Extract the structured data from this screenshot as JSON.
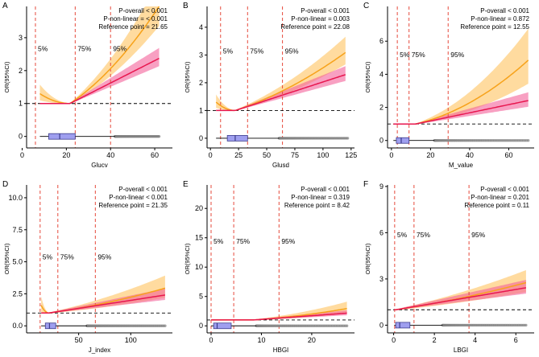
{
  "figure": {
    "colors": {
      "linear_line": "#e8174f",
      "linear_band": "#f4609a",
      "spline_line": "#f7a21a",
      "spline_band": "#ffcf7f",
      "overlap_band": "#f25a5a",
      "ref_line": "#000000",
      "pct_line": "#e64a3c",
      "box_fill": "#9f9fef",
      "box_stroke": "#3c3c8c",
      "outlier": "#808080",
      "axis": "#000000",
      "text": "#000000"
    }
  },
  "chart_data": [
    {
      "type": "line",
      "panel_label": "A",
      "xlabel": "Glucv",
      "ylabel": "OR(95%CI)",
      "xlim": [
        2,
        68
      ],
      "ylim": [
        -0.35,
        3.95
      ],
      "xticks": [
        0,
        20,
        40,
        60
      ],
      "xtick_labels": [
        "0",
        "20",
        "40",
        "60"
      ],
      "yticks": [
        0,
        1,
        2,
        3
      ],
      "ytick_labels": [
        "0",
        "1",
        "2",
        "3"
      ],
      "ref_y": 1,
      "percentiles": [
        {
          "label": "5%",
          "x": 6
        },
        {
          "label": "75%",
          "x": 24
        },
        {
          "label": "95%",
          "x": 40
        }
      ],
      "pct_label_y": 2.6,
      "stats": [
        "P-overall < 0.001",
        "P-non-linear = < 0.001",
        "Reference point = 21.65"
      ],
      "ref_point": 21.65,
      "x_end": 62,
      "linear_slope": 0.034,
      "spline_slope": 0.045,
      "spline_curve": 0.0007,
      "left_bump": 0.3,
      "band_lin": 0.1,
      "band_spl": 0.12,
      "box": {
        "min": 8,
        "q1": 12,
        "median": 17,
        "q3": 24,
        "max": 42,
        "outliers_from": 42,
        "outliers_to": 62,
        "y": 0
      }
    },
    {
      "type": "line",
      "panel_label": "B",
      "xlabel": "Glusd",
      "ylabel": "OR(95%CI)",
      "xlim": [
        -3,
        128
      ],
      "ylim": [
        -0.35,
        4.75
      ],
      "xticks": [
        0,
        25,
        50,
        75,
        100,
        125
      ],
      "xtick_labels": [
        "0",
        "25",
        "50",
        "75",
        "100",
        "125"
      ],
      "yticks": [
        0,
        1,
        2,
        3,
        4
      ],
      "ytick_labels": [
        "0",
        "1",
        "2",
        "3",
        "4"
      ],
      "ref_y": 1,
      "percentiles": [
        {
          "label": "5%",
          "x": 9
        },
        {
          "label": "75%",
          "x": 33
        },
        {
          "label": "95%",
          "x": 64
        }
      ],
      "pct_label_y": 3.05,
      "stats": [
        "P-overall < 0.001",
        "P-non-linear = 0.003",
        "Reference point = 22.08"
      ],
      "ref_point": 22.08,
      "x_end": 120,
      "linear_slope": 0.0132,
      "spline_slope": 0.0135,
      "spline_curve": 8e-05,
      "left_bump": 0.3,
      "band_lin": 0.1,
      "band_spl": 0.12,
      "box": {
        "min": 5,
        "q1": 15,
        "median": 22,
        "q3": 33,
        "max": 61,
        "outliers_from": 61,
        "outliers_to": 122,
        "y": 0
      }
    },
    {
      "type": "line",
      "panel_label": "C",
      "xlabel": "M_value",
      "ylabel": "OR(95%CI)",
      "xlim": [
        -2,
        73
      ],
      "ylim": [
        -0.45,
        8.1
      ],
      "xticks": [
        0,
        20,
        40,
        60
      ],
      "xtick_labels": [
        "0",
        "20",
        "40",
        "60"
      ],
      "yticks": [
        0,
        2,
        4,
        6
      ],
      "ytick_labels": [
        "0",
        "2",
        "4",
        "6"
      ],
      "ref_y": 1,
      "percentiles": [
        {
          "label": "5%",
          "x": 3
        },
        {
          "label": "75%",
          "x": 9
        },
        {
          "label": "95%",
          "x": 29
        }
      ],
      "pct_label_y": 5.05,
      "stats": [
        "P-overall < 0.001",
        "P-non-linear = 0.872",
        "Reference point = 12.55"
      ],
      "ref_point": 12.55,
      "x_end": 70,
      "linear_slope": 0.0246,
      "spline_slope": 0.028,
      "spline_curve": 0.00068,
      "left_bump": 0,
      "band_lin": 0.15,
      "band_spl": 0.22,
      "box": {
        "min": 1,
        "q1": 2.5,
        "median": 5,
        "q3": 9,
        "max": 22,
        "outliers_from": 22,
        "outliers_to": 70,
        "y": 0
      }
    },
    {
      "type": "line",
      "panel_label": "D",
      "xlabel": "J_index",
      "ylabel": "OR(95%CI)",
      "xlim": [
        0,
        140
      ],
      "ylim": [
        -0.55,
        11.0
      ],
      "xticks": [
        50,
        100
      ],
      "xtick_labels": [
        "50",
        "100"
      ],
      "yticks": [
        0,
        2.5,
        5,
        7.5,
        10
      ],
      "ytick_labels": [
        "0.0",
        "2.5",
        "5.0",
        "7.5",
        "10.0"
      ],
      "ref_y": 1,
      "percentiles": [
        {
          "label": "5%",
          "x": 13
        },
        {
          "label": "75%",
          "x": 30
        },
        {
          "label": "95%",
          "x": 66
        }
      ],
      "pct_label_y": 5.2,
      "stats": [
        "P-overall < 0.001",
        "P-non-linear < 0.001",
        "Reference point = 21.35"
      ],
      "ref_point": 21.35,
      "x_end": 133,
      "linear_slope": 0.0126,
      "spline_slope": 0.0118,
      "spline_curve": 5e-05,
      "left_bump": 0.6,
      "band_lin": 0.15,
      "band_spl": 0.22,
      "box": {
        "min": 14,
        "q1": 18,
        "median": 22,
        "q3": 28,
        "max": 58,
        "outliers_from": 58,
        "outliers_to": 133,
        "y": 0
      }
    },
    {
      "type": "line",
      "panel_label": "E",
      "xlabel": "HBGI",
      "ylabel": "OR(95%CI)",
      "xlim": [
        -0.8,
        28.5
      ],
      "ylim": [
        -1.2,
        24.0
      ],
      "xticks": [
        0,
        10,
        20
      ],
      "xtick_labels": [
        "0",
        "10",
        "20"
      ],
      "yticks": [
        0,
        5,
        10,
        15,
        20
      ],
      "ytick_labels": [
        "0",
        "5",
        "10",
        "15",
        "20"
      ],
      "ref_y": 1,
      "percentiles": [
        {
          "label": "5%",
          "x": 0
        },
        {
          "label": "75%",
          "x": 4.5
        },
        {
          "label": "95%",
          "x": 13.5
        }
      ],
      "pct_label_y": 14.0,
      "stats": [
        "P-overall < 0.001",
        "P-non-linear = 0.319",
        "Reference point = 8.42"
      ],
      "ref_point": 8.42,
      "x_end": 27,
      "linear_slope": 0.0627,
      "spline_slope": 0.06,
      "spline_curve": 0.0024,
      "left_bump": 0,
      "band_lin": 0.15,
      "band_spl": 0.25,
      "box": {
        "min": 0,
        "q1": 0.5,
        "median": 1.2,
        "q3": 4,
        "max": 9,
        "outliers_from": 9,
        "outliers_to": 27,
        "y": 0
      }
    },
    {
      "type": "line",
      "panel_label": "F",
      "xlabel": "LBGI",
      "ylabel": "OR(95%CI)",
      "xlim": [
        -0.3,
        6.9
      ],
      "ylim": [
        -0.5,
        9.1
      ],
      "xticks": [
        0,
        2,
        4,
        6
      ],
      "xtick_labels": [
        "0",
        "2",
        "4",
        "6"
      ],
      "yticks": [
        0,
        3,
        6,
        9
      ],
      "ytick_labels": [
        "0",
        "3",
        "6",
        "9"
      ],
      "ref_y": 1,
      "percentiles": [
        {
          "label": "5%",
          "x": 0.05
        },
        {
          "label": "75%",
          "x": 1
        },
        {
          "label": "95%",
          "x": 3.7
        }
      ],
      "pct_label_y": 5.7,
      "stats": [
        "P-overall < 0.001",
        "P-non-linear = 0.201",
        "Reference point = 0.11"
      ],
      "ref_point": 0.11,
      "x_end": 6.5,
      "linear_slope": 0.2237,
      "spline_slope": 0.2,
      "spline_curve": 0.0118,
      "left_bump": 0,
      "band_lin": 0.15,
      "band_spl": 0.2,
      "box": {
        "min": 0.03,
        "q1": 0.1,
        "median": 0.3,
        "q3": 0.8,
        "max": 2.4,
        "outliers_from": 2.4,
        "outliers_to": 6.5,
        "y": 0
      }
    }
  ]
}
